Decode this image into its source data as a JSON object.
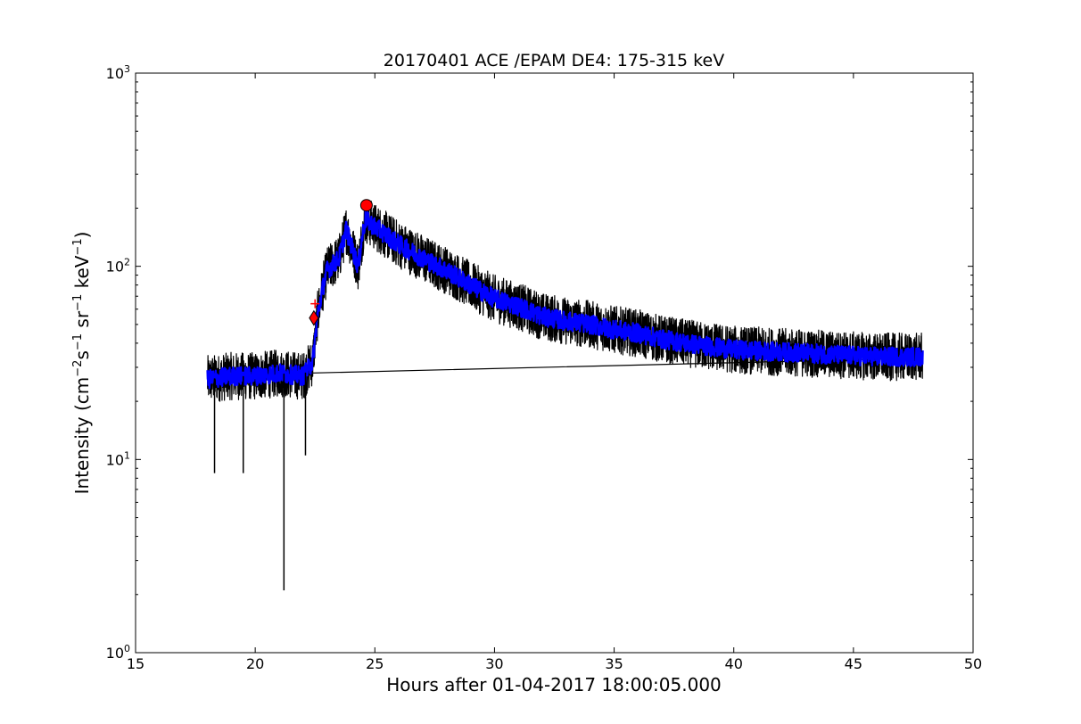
{
  "chart_data": {
    "type": "line",
    "title": "20170401 ACE /EPAM DE4: 175-315 keV",
    "xlabel": "Hours after 01-04-2017 18:00:05.000",
    "ylabel_parts": {
      "prefix": "Intensity (cm",
      "exp1": "−2",
      "s": "s",
      "exp2": "−1",
      "sr": " sr",
      "exp3": "−1",
      "kev": " keV",
      "exp4": "−1",
      "suffix": ")"
    },
    "xlim": [
      15,
      50
    ],
    "ylim": [
      1,
      1000
    ],
    "yscale": "log",
    "grid": false,
    "xticks": [
      15,
      20,
      25,
      30,
      35,
      40,
      45,
      50
    ],
    "yticks": [
      {
        "value": 1,
        "base": "10",
        "exp": "0"
      },
      {
        "value": 10,
        "base": "10",
        "exp": "1"
      },
      {
        "value": 100,
        "base": "10",
        "exp": "2"
      },
      {
        "value": 1000,
        "base": "10",
        "exp": "3"
      }
    ],
    "series": [
      {
        "role": "raw",
        "color": "#000000",
        "trend": [
          [
            18.0,
            26
          ],
          [
            19.0,
            27
          ],
          [
            20.0,
            27
          ],
          [
            21.0,
            28
          ],
          [
            22.0,
            27
          ],
          [
            22.4,
            32
          ],
          [
            22.6,
            55
          ],
          [
            22.8,
            75
          ],
          [
            23.0,
            95
          ],
          [
            23.5,
            110
          ],
          [
            23.8,
            155
          ],
          [
            24.0,
            130
          ],
          [
            24.3,
            100
          ],
          [
            24.5,
            150
          ],
          [
            24.6,
            175
          ],
          [
            25.0,
            160
          ],
          [
            26.0,
            130
          ],
          [
            27.0,
            110
          ],
          [
            28.0,
            95
          ],
          [
            29.0,
            80
          ],
          [
            30.0,
            68
          ],
          [
            31.0,
            62
          ],
          [
            32.0,
            55
          ],
          [
            33.0,
            52
          ],
          [
            34.0,
            50
          ],
          [
            35.0,
            47
          ],
          [
            36.0,
            45
          ],
          [
            37.0,
            42
          ],
          [
            38.0,
            40
          ],
          [
            40.0,
            37
          ],
          [
            42.0,
            36
          ],
          [
            44.0,
            35
          ],
          [
            46.0,
            34
          ],
          [
            47.9,
            34
          ]
        ]
      },
      {
        "role": "smoothed",
        "color": "#0000ff",
        "trend": [
          [
            18.0,
            26
          ],
          [
            19.0,
            27
          ],
          [
            20.0,
            27
          ],
          [
            21.0,
            28
          ],
          [
            22.0,
            27
          ],
          [
            22.4,
            32
          ],
          [
            22.6,
            55
          ],
          [
            22.8,
            75
          ],
          [
            23.0,
            95
          ],
          [
            23.5,
            110
          ],
          [
            23.8,
            155
          ],
          [
            24.0,
            130
          ],
          [
            24.3,
            100
          ],
          [
            24.5,
            150
          ],
          [
            24.6,
            175
          ],
          [
            25.0,
            160
          ],
          [
            26.0,
            130
          ],
          [
            27.0,
            110
          ],
          [
            28.0,
            95
          ],
          [
            29.0,
            80
          ],
          [
            30.0,
            68
          ],
          [
            31.0,
            62
          ],
          [
            32.0,
            55
          ],
          [
            33.0,
            52
          ],
          [
            34.0,
            50
          ],
          [
            35.0,
            47
          ],
          [
            36.0,
            45
          ],
          [
            37.0,
            42
          ],
          [
            38.0,
            40
          ],
          [
            40.0,
            37
          ],
          [
            42.0,
            36
          ],
          [
            44.0,
            35
          ],
          [
            46.0,
            34
          ],
          [
            47.9,
            34
          ]
        ]
      }
    ],
    "markers": [
      {
        "shape": "diamond",
        "color": "#ff0000",
        "x": 22.45,
        "y": 54
      },
      {
        "shape": "plus",
        "color": "#ff0000",
        "x": 22.5,
        "y": 64
      },
      {
        "shape": "circle",
        "color": "#ff0000",
        "x": 24.65,
        "y": 207
      }
    ],
    "spikes": [
      [
        21.2,
        2.1
      ],
      [
        22.1,
        10.5
      ],
      [
        18.3,
        8.5
      ],
      [
        19.5,
        8.5
      ]
    ]
  }
}
